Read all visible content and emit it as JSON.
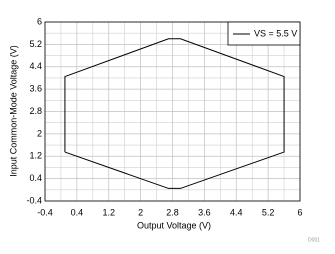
{
  "chart_data": {
    "type": "line",
    "xlabel": "Output Voltage (V)",
    "ylabel": "Input Common-Mode Voltage (V)",
    "series": [
      {
        "name": "VS = 5.5 V",
        "color": "#000000",
        "x": [
          0.1,
          0.1,
          2.7,
          3.0,
          5.6,
          5.6,
          3.0,
          2.7,
          0.1
        ],
        "values": [
          1.35,
          4.05,
          5.4,
          5.4,
          4.05,
          1.35,
          0.05,
          0.05,
          1.35
        ]
      }
    ],
    "xlim": [
      -0.4,
      6
    ],
    "xticks": [
      -0.4,
      0.4,
      1.2,
      2,
      2.8,
      3.6,
      4.4,
      5.2,
      6
    ],
    "ylim": [
      -0.4,
      6
    ],
    "yticks": [
      -0.4,
      0.4,
      1.2,
      2,
      2.8,
      3.6,
      4.4,
      5.2,
      6
    ],
    "grid": true,
    "legend": "upper right",
    "figure_id": "D001"
  }
}
